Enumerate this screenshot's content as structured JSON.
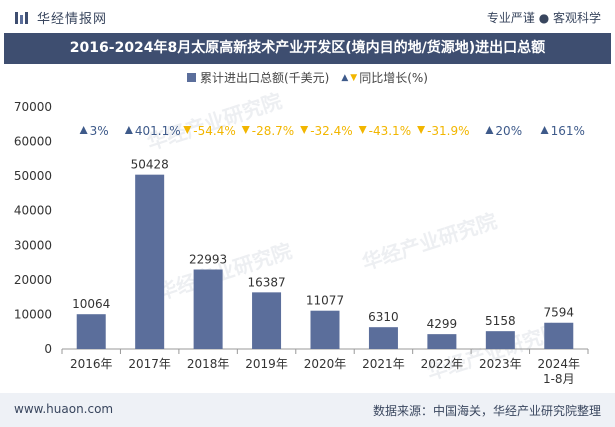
{
  "header": {
    "brand": "华经情报网",
    "tagline": "专业严谨 ● 客观科学"
  },
  "colors": {
    "bar": "#5b6e9b",
    "up": "#3e5a8a",
    "down": "#f2b600",
    "title_bg": "#3e4e70"
  },
  "chart_data": {
    "type": "bar",
    "title": "2016-2024年8月太原高新技术产业开发区(境内目的地/货源地)进出口总额",
    "categories": [
      "2016年",
      "2017年",
      "2018年",
      "2019年",
      "2020年",
      "2021年",
      "2022年",
      "2023年",
      "2024年\n1-8月"
    ],
    "series": [
      {
        "name": "累计进出口总额(千美元)",
        "values": [
          10064,
          50428,
          22993,
          16387,
          11077,
          6310,
          4299,
          5158,
          7594
        ]
      }
    ],
    "growth": {
      "name": "同比增长(%)",
      "labels": [
        "3%",
        "401.1%",
        "-54.4%",
        "-28.7%",
        "-32.4%",
        "-43.1%",
        "-31.9%",
        "20%",
        "161%"
      ],
      "direction": [
        "up",
        "up",
        "down",
        "down",
        "down",
        "down",
        "down",
        "up",
        "up"
      ]
    },
    "ylim": [
      0,
      70000
    ],
    "yticks": [
      0,
      10000,
      20000,
      30000,
      40000,
      50000,
      60000,
      70000
    ],
    "legend_position": "top"
  },
  "watermark": "华经产业研究院",
  "footer": {
    "site": "www.huaon.com",
    "source": "数据来源：中国海关，华经产业研究院整理"
  }
}
